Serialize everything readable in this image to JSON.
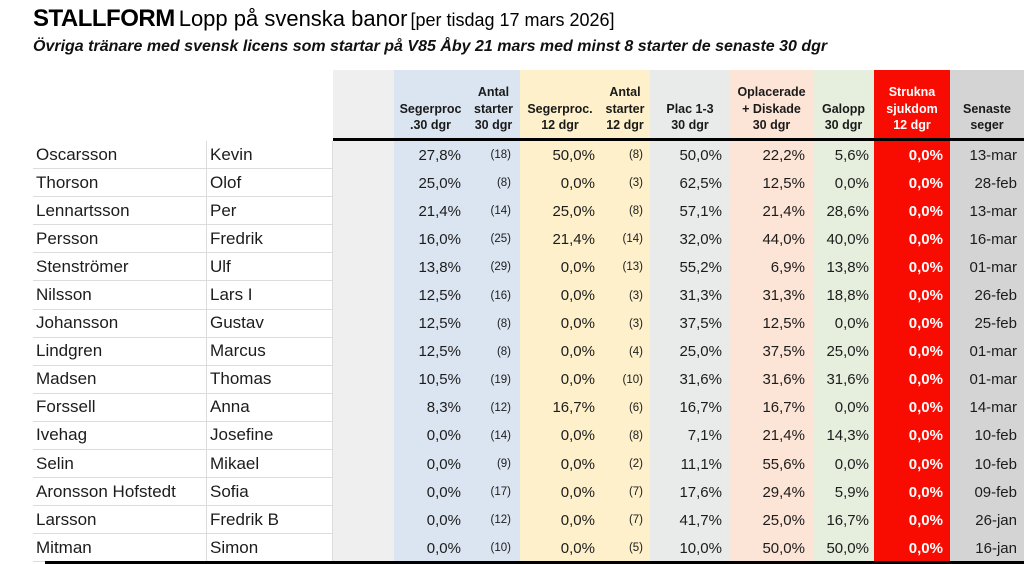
{
  "title": {
    "brand": "STALLFORM",
    "main": "Lopp på svenska banor",
    "bracket": "[per tisdag 17 mars 2026]"
  },
  "subtitle": "Övriga tränare med svensk licens som startar på V85 Åby 21 mars med minst 8 starter de senaste 30 dgr",
  "colors": {
    "blue": "#dbe5f1",
    "yellow": "#fdf0ca",
    "plac_gray": "#e9eaea",
    "salmon": "#fce4d6",
    "green": "#e6efde",
    "red": "#f80b00",
    "date_gray": "#d4d4d4",
    "spacer_gray": "#efefef",
    "grid": "#dcdcdc",
    "header_border": "#000000",
    "text": "#1c1c1c",
    "strukna_text": "#ffffff"
  },
  "table": {
    "header_labels": {
      "last": "",
      "first": "",
      "spacer": "",
      "seg30": "Segerproc\n.30 dgr",
      "ant30": "Antal\nstarter\n30 dgr",
      "seg12": "Segerproc.\n12 dgr",
      "ant12": "Antal\nstarter\n12 dgr",
      "plac": "Plac 1-3\n30 dgr",
      "opl": "Oplacerade\n+ Diskade\n30 dgr",
      "galopp": "Galopp\n30 dgr",
      "strukna": "Strukna\nsjukdom\n12 dgr",
      "senaste": "Senaste\nseger"
    },
    "columns": [
      {
        "key": "last"
      },
      {
        "key": "first"
      },
      {
        "key": "spacer"
      },
      {
        "key": "seg30"
      },
      {
        "key": "ant30"
      },
      {
        "key": "seg12"
      },
      {
        "key": "ant12"
      },
      {
        "key": "plac"
      },
      {
        "key": "opl"
      },
      {
        "key": "galopp"
      },
      {
        "key": "strukna"
      },
      {
        "key": "senaste"
      }
    ],
    "rows": [
      {
        "last": "Oscarsson",
        "first": "Kevin",
        "seg30": "27,8%",
        "ant30": "(18)",
        "seg12": "50,0%",
        "ant12": "(8)",
        "plac": "50,0%",
        "opl": "22,2%",
        "galopp": "5,6%",
        "strukna": "0,0%",
        "senaste": "13-mar"
      },
      {
        "last": "Thorson",
        "first": "Olof",
        "seg30": "25,0%",
        "ant30": "(8)",
        "seg12": "0,0%",
        "ant12": "(3)",
        "plac": "62,5%",
        "opl": "12,5%",
        "galopp": "0,0%",
        "strukna": "0,0%",
        "senaste": "28-feb"
      },
      {
        "last": "Lennartsson",
        "first": "Per",
        "seg30": "21,4%",
        "ant30": "(14)",
        "seg12": "25,0%",
        "ant12": "(8)",
        "plac": "57,1%",
        "opl": "21,4%",
        "galopp": "28,6%",
        "strukna": "0,0%",
        "senaste": "13-mar"
      },
      {
        "last": "Persson",
        "first": "Fredrik",
        "seg30": "16,0%",
        "ant30": "(25)",
        "seg12": "21,4%",
        "ant12": "(14)",
        "plac": "32,0%",
        "opl": "44,0%",
        "galopp": "40,0%",
        "strukna": "0,0%",
        "senaste": "16-mar"
      },
      {
        "last": "Stenströmer",
        "first": "Ulf",
        "seg30": "13,8%",
        "ant30": "(29)",
        "seg12": "0,0%",
        "ant12": "(13)",
        "plac": "55,2%",
        "opl": "6,9%",
        "galopp": "13,8%",
        "strukna": "0,0%",
        "senaste": "01-mar"
      },
      {
        "last": "Nilsson",
        "first": "Lars I",
        "seg30": "12,5%",
        "ant30": "(16)",
        "seg12": "0,0%",
        "ant12": "(3)",
        "plac": "31,3%",
        "opl": "31,3%",
        "galopp": "18,8%",
        "strukna": "0,0%",
        "senaste": "26-feb"
      },
      {
        "last": "Johansson",
        "first": "Gustav",
        "seg30": "12,5%",
        "ant30": "(8)",
        "seg12": "0,0%",
        "ant12": "(3)",
        "plac": "37,5%",
        "opl": "12,5%",
        "galopp": "0,0%",
        "strukna": "0,0%",
        "senaste": "25-feb"
      },
      {
        "last": "Lindgren",
        "first": "Marcus",
        "seg30": "12,5%",
        "ant30": "(8)",
        "seg12": "0,0%",
        "ant12": "(4)",
        "plac": "25,0%",
        "opl": "37,5%",
        "galopp": "25,0%",
        "strukna": "0,0%",
        "senaste": "01-mar"
      },
      {
        "last": "Madsen",
        "first": "Thomas",
        "seg30": "10,5%",
        "ant30": "(19)",
        "seg12": "0,0%",
        "ant12": "(10)",
        "plac": "31,6%",
        "opl": "31,6%",
        "galopp": "31,6%",
        "strukna": "0,0%",
        "senaste": "01-mar"
      },
      {
        "last": "Forssell",
        "first": "Anna",
        "seg30": "8,3%",
        "ant30": "(12)",
        "seg12": "16,7%",
        "ant12": "(6)",
        "plac": "16,7%",
        "opl": "16,7%",
        "galopp": "0,0%",
        "strukna": "0,0%",
        "senaste": "14-mar"
      },
      {
        "last": "Ivehag",
        "first": "Josefine",
        "seg30": "0,0%",
        "ant30": "(14)",
        "seg12": "0,0%",
        "ant12": "(8)",
        "plac": "7,1%",
        "opl": "21,4%",
        "galopp": "14,3%",
        "strukna": "0,0%",
        "senaste": "10-feb"
      },
      {
        "last": "Selin",
        "first": "Mikael",
        "seg30": "0,0%",
        "ant30": "(9)",
        "seg12": "0,0%",
        "ant12": "(2)",
        "plac": "11,1%",
        "opl": "55,6%",
        "galopp": "0,0%",
        "strukna": "0,0%",
        "senaste": "10-feb"
      },
      {
        "last": "Aronsson Hofstedt",
        "first": "Sofia",
        "seg30": "0,0%",
        "ant30": "(17)",
        "seg12": "0,0%",
        "ant12": "(7)",
        "plac": "17,6%",
        "opl": "29,4%",
        "galopp": "5,9%",
        "strukna": "0,0%",
        "senaste": "09-feb"
      },
      {
        "last": "Larsson",
        "first": "Fredrik B",
        "seg30": "0,0%",
        "ant30": "(12)",
        "seg12": "0,0%",
        "ant12": "(7)",
        "plac": "41,7%",
        "opl": "25,0%",
        "galopp": "16,7%",
        "strukna": "0,0%",
        "senaste": "26-jan"
      },
      {
        "last": "Mitman",
        "first": "Simon",
        "seg30": "0,0%",
        "ant30": "(10)",
        "seg12": "0,0%",
        "ant12": "(5)",
        "plac": "10,0%",
        "opl": "50,0%",
        "galopp": "50,0%",
        "strukna": "0,0%",
        "senaste": "16-jan"
      }
    ]
  }
}
